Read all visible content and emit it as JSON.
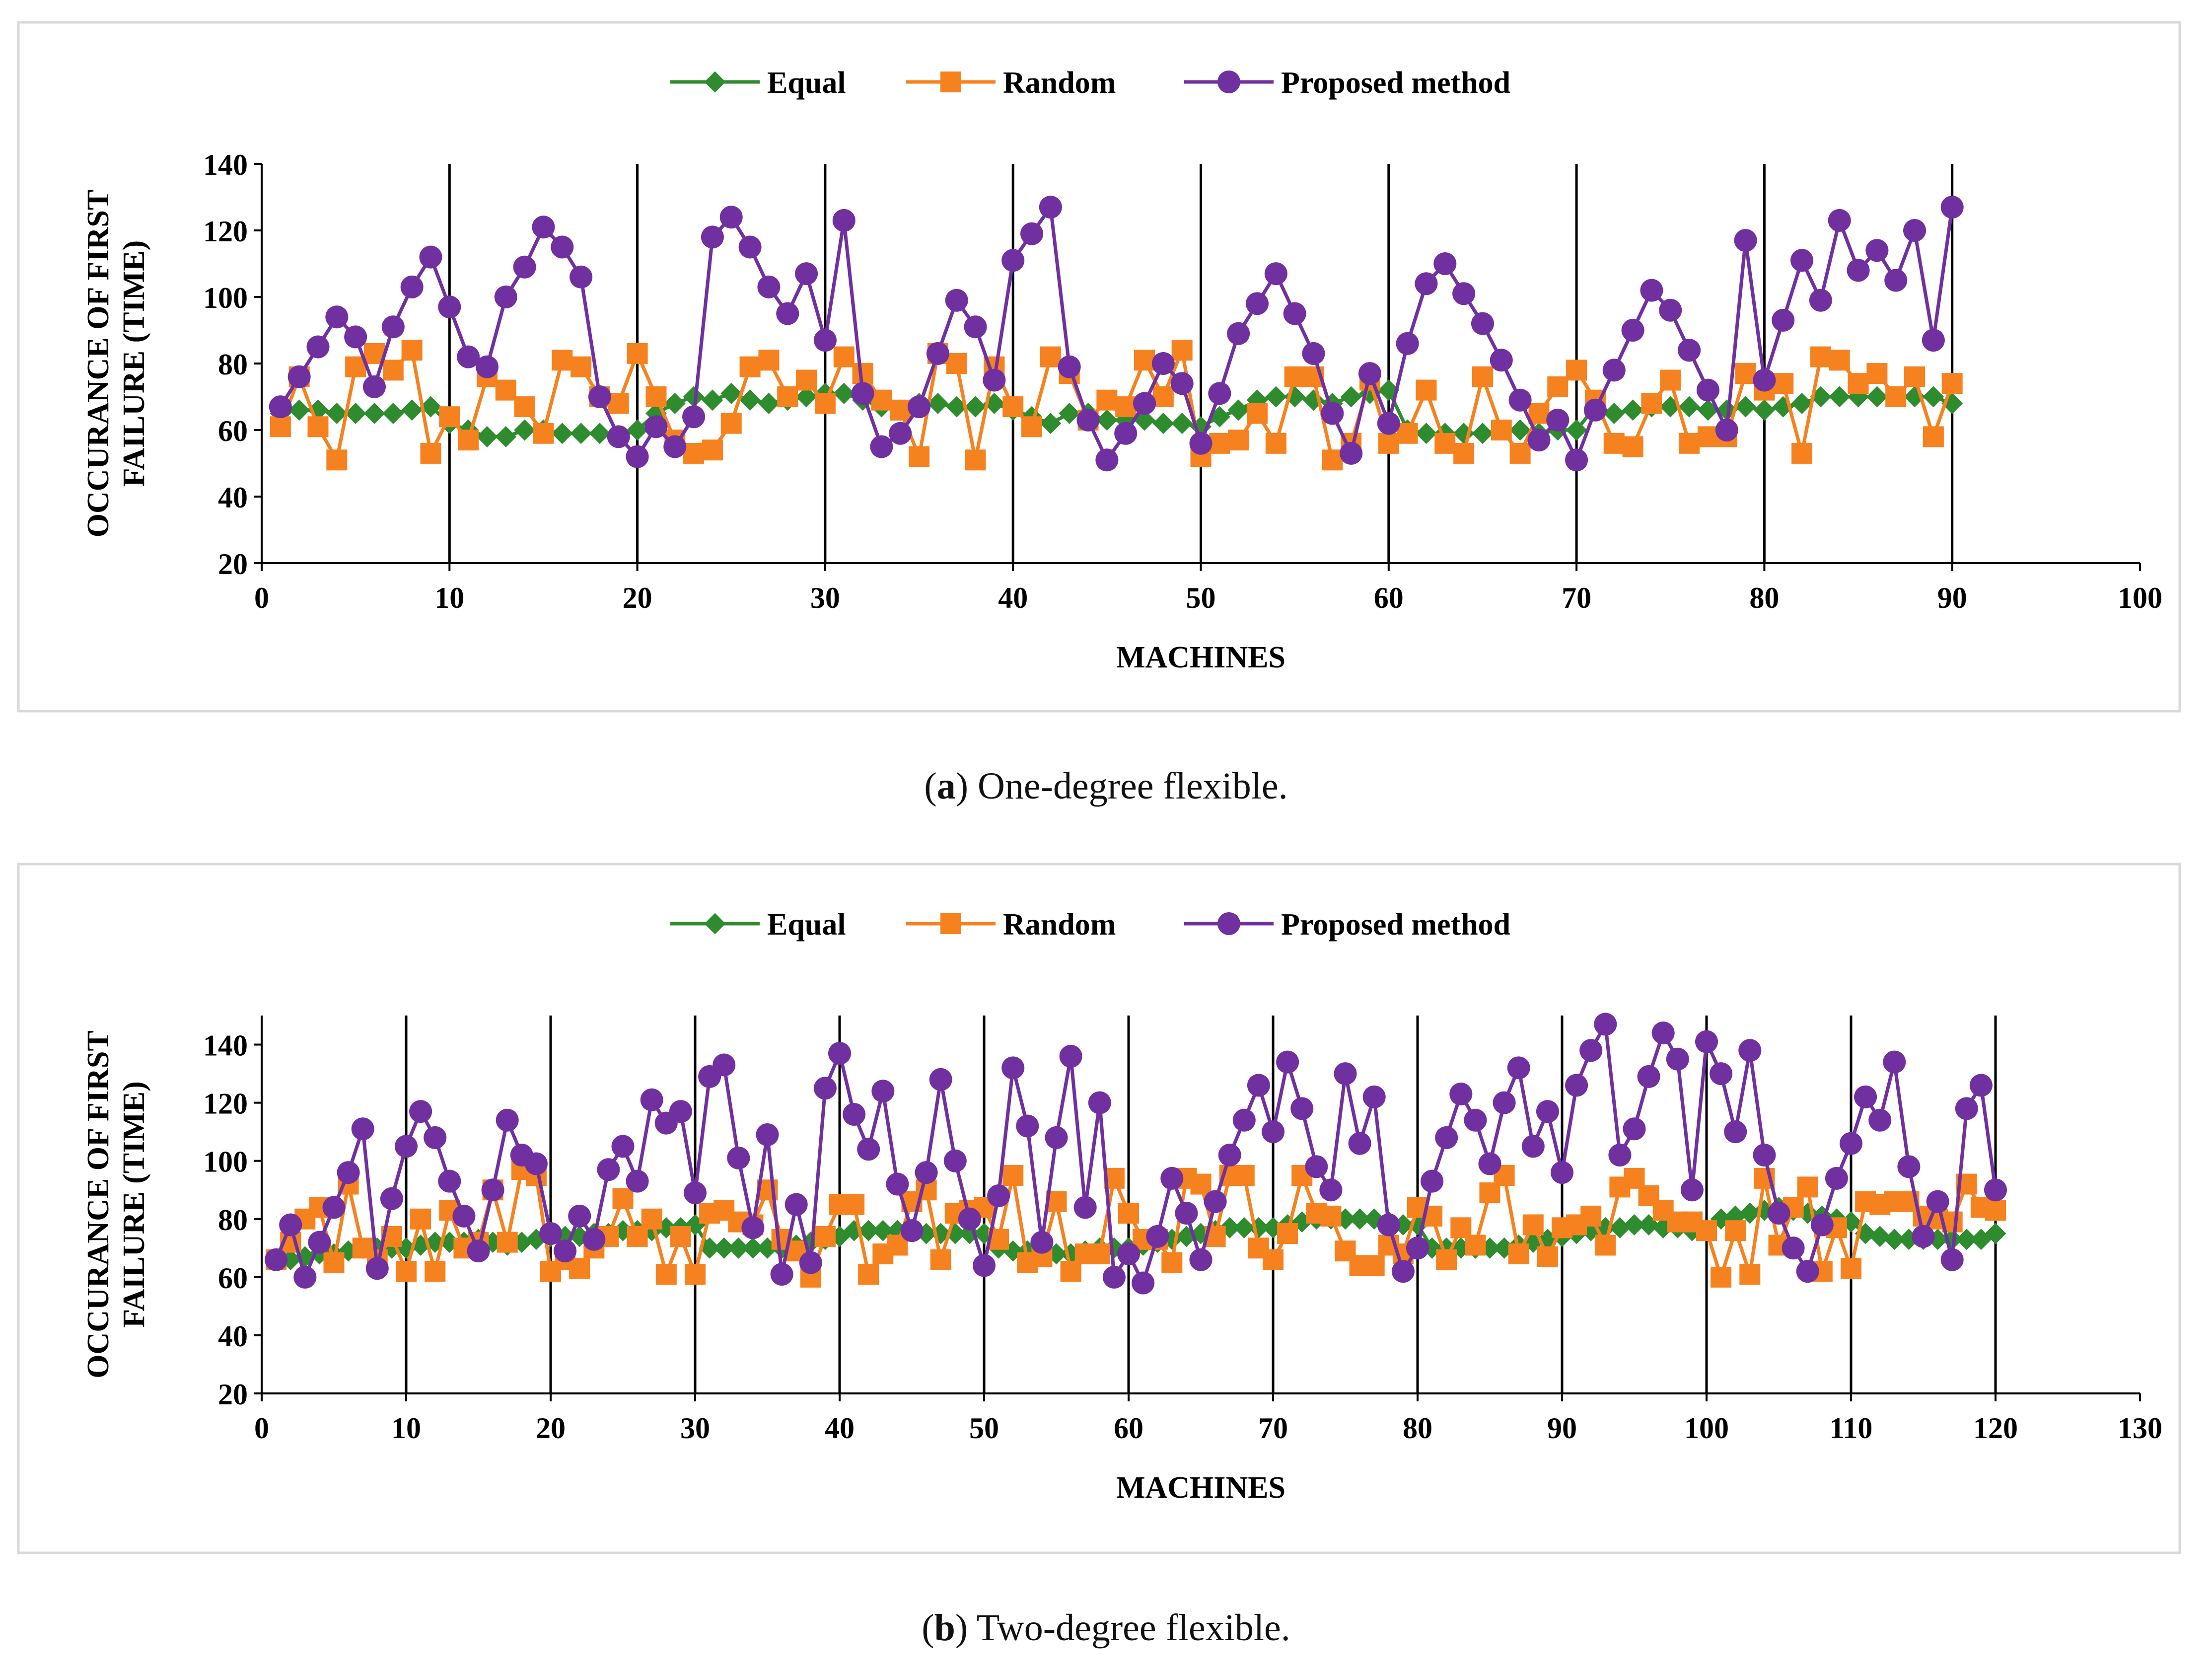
{
  "panels": [
    {
      "caption_letter": "a",
      "caption_text": "One-degree flexible."
    },
    {
      "caption_letter": "b",
      "caption_text": "Two-degree flexible."
    }
  ],
  "colors": {
    "equal": "#2E8B2E",
    "random": "#F5821F",
    "proposed": "#7030A0",
    "frame": "#d9d9d9"
  },
  "chart_data": [
    {
      "type": "line",
      "title": "",
      "xlabel": "MACHINES",
      "ylabel": "OCCURANCE OF FIRST FAILURE (TIME)",
      "ylabel_lines": [
        "OCCURANCE OF FIRST",
        "FAILURE (TIME)"
      ],
      "xlim": [
        0,
        100
      ],
      "ylim": [
        20,
        140
      ],
      "xticks": [
        0,
        10,
        20,
        30,
        40,
        50,
        60,
        70,
        80,
        90,
        100
      ],
      "yticks": [
        20,
        40,
        60,
        80,
        100,
        120,
        140
      ],
      "vgrid": [
        10,
        20,
        30,
        40,
        50,
        60,
        70,
        80,
        90
      ],
      "legend": [
        "Equal",
        "Random",
        "Proposed method"
      ],
      "series": [
        {
          "name": "Equal",
          "marker": "diamond",
          "color": "#2E8B2E",
          "values": [
            65,
            66,
            66,
            65,
            65,
            65,
            65,
            66,
            67,
            62,
            60,
            58,
            58,
            60,
            60,
            59,
            59,
            59,
            58,
            60,
            65,
            68,
            70,
            69,
            71,
            69,
            68,
            69,
            70,
            71,
            71,
            69,
            67,
            66,
            68,
            68,
            67,
            67,
            68,
            66,
            64,
            62,
            65,
            65,
            63,
            63,
            63,
            62,
            62,
            61,
            64,
            66,
            69,
            70,
            70,
            69,
            68,
            70,
            71,
            72,
            60,
            59,
            59,
            59,
            59,
            60,
            60,
            59,
            60,
            60,
            67,
            65,
            66,
            67,
            67,
            67,
            66,
            66,
            67,
            66,
            67,
            68,
            70,
            70,
            70,
            70,
            70,
            70,
            70,
            68
          ]
        },
        {
          "name": "Random",
          "marker": "square",
          "color": "#F5821F",
          "values": [
            61,
            76,
            61,
            51,
            79,
            83,
            78,
            84,
            53,
            64,
            57,
            76,
            72,
            67,
            59,
            81,
            79,
            70,
            68,
            83,
            70,
            57,
            53,
            54,
            62,
            79,
            81,
            70,
            75,
            68,
            82,
            77,
            69,
            66,
            52,
            83,
            80,
            51,
            79,
            67,
            61,
            82,
            77,
            63,
            69,
            67,
            81,
            70,
            84,
            52,
            56,
            57,
            65,
            56,
            76,
            76,
            51,
            56,
            75,
            56,
            59,
            72,
            56,
            53,
            76,
            60,
            53,
            65,
            73,
            78,
            69,
            56,
            55,
            68,
            75,
            56,
            58,
            58,
            77,
            72,
            74,
            53,
            82,
            81,
            74,
            77,
            70,
            76,
            58,
            74
          ]
        },
        {
          "name": "Proposed method",
          "marker": "circle",
          "color": "#7030A0",
          "values": [
            67,
            76,
            85,
            94,
            88,
            73,
            91,
            103,
            112,
            97,
            82,
            79,
            100,
            109,
            121,
            115,
            106,
            70,
            58,
            52,
            61,
            55,
            64,
            118,
            124,
            115,
            103,
            95,
            107,
            87,
            123,
            71,
            55,
            59,
            67,
            83,
            99,
            91,
            75,
            111,
            119,
            127,
            79,
            63,
            51,
            59,
            68,
            80,
            74,
            56,
            71,
            89,
            98,
            107,
            95,
            83,
            65,
            53,
            77,
            62,
            86,
            104,
            110,
            101,
            92,
            81,
            69,
            57,
            63,
            51,
            66,
            78,
            90,
            102,
            96,
            84,
            72,
            60,
            117,
            75,
            93,
            111,
            99,
            123,
            108,
            114,
            105,
            120,
            87,
            127
          ]
        }
      ]
    },
    {
      "type": "line",
      "title": "",
      "xlabel": "MACHINES",
      "ylabel": "OCCURANCE OF FIRST FAILURE (TIME)",
      "ylabel_lines": [
        "OCCURANCE OF FIRST",
        "FAILURE (TIME)"
      ],
      "xlim": [
        0,
        130
      ],
      "ylim": [
        20,
        150
      ],
      "xticks": [
        0,
        10,
        20,
        30,
        40,
        50,
        60,
        70,
        80,
        90,
        100,
        110,
        120,
        130
      ],
      "yticks": [
        20,
        40,
        60,
        80,
        100,
        120,
        140
      ],
      "vgrid": [
        10,
        20,
        30,
        40,
        50,
        60,
        70,
        80,
        90,
        100,
        110,
        120
      ],
      "legend": [
        "Equal",
        "Random",
        "Proposed method"
      ],
      "series": [
        {
          "name": "Equal",
          "marker": "diamond",
          "color": "#2E8B2E",
          "values": [
            66,
            66,
            67,
            68,
            68,
            69,
            70,
            70,
            70,
            70,
            71,
            72,
            72,
            72,
            73,
            72,
            71,
            72,
            73,
            74,
            74,
            74,
            75,
            75,
            76,
            76,
            76,
            77,
            77,
            78,
            70,
            70,
            70,
            70,
            70,
            70,
            71,
            72,
            73,
            74,
            76,
            76,
            76,
            76,
            76,
            75,
            75,
            75,
            75,
            75,
            70,
            69,
            69,
            68,
            68,
            68,
            69,
            70,
            70,
            70,
            71,
            72,
            73,
            74,
            75,
            76,
            77,
            77,
            77,
            77,
            78,
            79,
            80,
            80,
            80,
            80,
            80,
            79,
            78,
            78,
            70,
            70,
            70,
            70,
            70,
            70,
            71,
            72,
            73,
            74,
            75,
            76,
            77,
            77,
            78,
            78,
            77,
            77,
            76,
            76,
            80,
            81,
            82,
            83,
            84,
            83,
            82,
            81,
            80,
            79,
            75,
            74,
            73,
            73,
            73,
            73,
            73,
            73,
            73,
            75
          ]
        },
        {
          "name": "Random",
          "marker": "square",
          "color": "#F5821F",
          "values": [
            66,
            72,
            80,
            84,
            65,
            92,
            70,
            66,
            74,
            62,
            80,
            62,
            83,
            70,
            72,
            90,
            72,
            97,
            95,
            62,
            66,
            63,
            70,
            74,
            87,
            74,
            80,
            61,
            74,
            61,
            82,
            83,
            79,
            78,
            90,
            73,
            69,
            60,
            74,
            85,
            85,
            61,
            68,
            71,
            86,
            90,
            66,
            82,
            83,
            84,
            73,
            95,
            65,
            67,
            86,
            62,
            68,
            68,
            94,
            82,
            73,
            73,
            65,
            94,
            92,
            74,
            95,
            95,
            70,
            66,
            75,
            95,
            82,
            81,
            69,
            64,
            64,
            71,
            68,
            84,
            81,
            66,
            77,
            71,
            89,
            95,
            68,
            78,
            67,
            77,
            78,
            81,
            71,
            91,
            94,
            88,
            83,
            79,
            79,
            76,
            60,
            76,
            61,
            94,
            71,
            84,
            91,
            62,
            77,
            63,
            86,
            85,
            86,
            86,
            81,
            80,
            79,
            92,
            84,
            83
          ]
        },
        {
          "name": "Proposed method",
          "marker": "circle",
          "color": "#7030A0",
          "values": [
            66,
            78,
            60,
            72,
            84,
            96,
            111,
            63,
            87,
            105,
            117,
            108,
            93,
            81,
            69,
            90,
            114,
            102,
            99,
            75,
            69,
            81,
            73,
            97,
            105,
            93,
            121,
            113,
            117,
            89,
            129,
            133,
            101,
            77,
            109,
            61,
            85,
            65,
            125,
            137,
            116,
            104,
            124,
            92,
            76,
            96,
            128,
            100,
            80,
            64,
            88,
            132,
            112,
            72,
            108,
            136,
            84,
            120,
            60,
            68,
            58,
            74,
            94,
            82,
            66,
            86,
            102,
            114,
            126,
            110,
            134,
            118,
            98,
            90,
            130,
            106,
            122,
            78,
            62,
            70,
            93,
            108,
            123,
            114,
            99,
            120,
            132,
            105,
            117,
            96,
            126,
            138,
            147,
            102,
            111,
            129,
            144,
            135,
            90,
            141,
            130,
            110,
            138,
            102,
            82,
            70,
            62,
            78,
            94,
            106,
            122,
            114,
            134,
            98,
            74,
            86,
            66,
            118,
            126,
            90
          ]
        }
      ]
    }
  ]
}
